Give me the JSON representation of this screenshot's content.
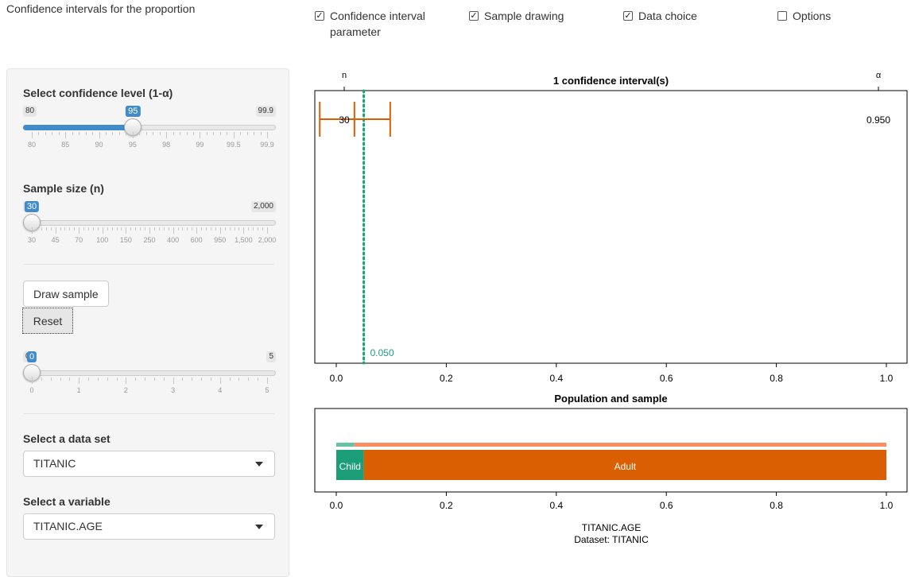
{
  "app": {
    "title": "Confidence intervals for the proportion"
  },
  "toggles": [
    {
      "label": "Confidence interval\nparameter",
      "checked": true
    },
    {
      "label": "Sample drawing",
      "checked": true
    },
    {
      "label": "Data choice",
      "checked": true
    },
    {
      "label": "Options",
      "checked": false
    }
  ],
  "sidebar": {
    "confidence": {
      "label": "Select confidence level (1-α)",
      "min": "80",
      "max": "99.9",
      "value": "95",
      "position_fraction": 0.43,
      "ticks": [
        "80",
        "85",
        "90",
        "95",
        "98",
        "99",
        "99.5",
        "99.9"
      ]
    },
    "sample_size": {
      "label": "Sample size (n)",
      "min": "30",
      "max": "2,000",
      "value": "30",
      "position_fraction": 0.0,
      "ticks": [
        "30",
        "45",
        "70",
        "100",
        "150",
        "250",
        "400",
        "600",
        "950",
        "1,500",
        "2,000"
      ]
    },
    "draw_button": "Draw sample",
    "reset_button": "Reset",
    "draws": {
      "min": "0",
      "max": "5",
      "value": "0",
      "position_fraction": 0.0,
      "ticks": [
        "0",
        "1",
        "2",
        "3",
        "4",
        "5"
      ]
    },
    "dataset": {
      "label": "Select a data set",
      "value": "TITANIC"
    },
    "variable": {
      "label": "Select a variable",
      "value": "TITANIC.AGE"
    }
  },
  "chart_data": [
    {
      "type": "interval",
      "title": "1 confidence interval(s)",
      "xlim": [
        0,
        1
      ],
      "x_ticks": [
        "0.0",
        "0.2",
        "0.4",
        "0.6",
        "0.8",
        "1.0"
      ],
      "top_left_label": "n",
      "top_right_label": "α",
      "intervals": [
        {
          "n_label": "30",
          "lower": -0.03,
          "estimate": 0.033,
          "upper": 0.098,
          "level_label": "0.950"
        }
      ],
      "reference_line": {
        "value": 0.05,
        "label": "0.050"
      },
      "colors": {
        "interval": "#d95f02",
        "reference": "#1b9e77"
      }
    },
    {
      "type": "bar",
      "title": "Population and sample",
      "xlim": [
        0,
        1
      ],
      "x_ticks": [
        "0.0",
        "0.2",
        "0.4",
        "0.6",
        "0.8",
        "1.0"
      ],
      "sample_bar": [
        {
          "category": "Child",
          "fraction": 0.033,
          "color": "#66c2a5"
        },
        {
          "category": "Adult",
          "fraction": 0.967,
          "color": "#fc8d62"
        }
      ],
      "population_bar": [
        {
          "category": "Child",
          "fraction": 0.05,
          "color": "#1b9e77"
        },
        {
          "category": "Adult",
          "fraction": 0.95,
          "color": "#d95f02"
        }
      ],
      "xlabel": "TITANIC.AGE",
      "subtitle": "Dataset: TITANIC"
    }
  ]
}
